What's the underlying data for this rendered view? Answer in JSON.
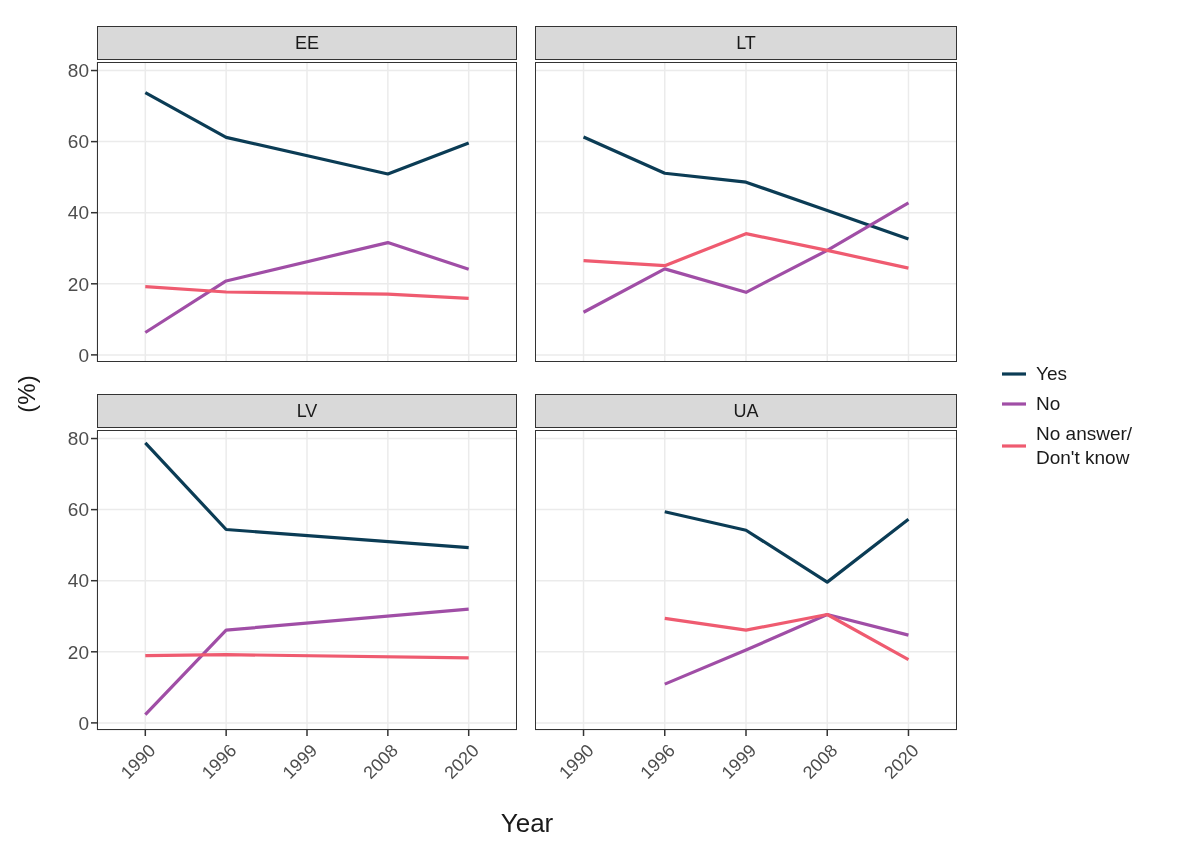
{
  "chart_data": [
    {
      "type": "line",
      "title": "EE",
      "ylabel": "(%)",
      "categories": [
        "1990",
        "1996",
        "1999",
        "2008",
        "2020"
      ],
      "ylim": [
        -2,
        82.4
      ],
      "yticks": [
        0,
        20,
        40,
        60,
        80
      ],
      "grid": true,
      "tick_labels": "y",
      "legend": "right",
      "series": [
        {
          "name": "Yes",
          "color": "#0b3c55",
          "values": [
            73.8,
            61.2,
            null,
            50.9,
            59.6
          ]
        },
        {
          "name": "No",
          "color": "#a04ea6",
          "values": [
            6.3,
            20.8,
            null,
            31.6,
            24.1
          ]
        },
        {
          "name": "No answer/ Don't know",
          "color": "#ef5b70",
          "values": [
            19.2,
            17.7,
            null,
            17.1,
            15.9
          ]
        }
      ]
    },
    {
      "type": "line",
      "title": "LT",
      "categories": [
        "1990",
        "1996",
        "1999",
        "2008",
        "2020"
      ],
      "ylim": [
        -2,
        82.4
      ],
      "yticks": [
        0,
        20,
        40,
        60,
        80
      ],
      "grid": true,
      "tick_labels": false,
      "series": [
        {
          "color": "#0b3c55",
          "values": [
            61.3,
            51.1,
            48.6,
            40.6,
            32.6
          ]
        },
        {
          "color": "#a04ea6",
          "values": [
            12,
            24.2,
            17.6,
            29.4,
            42.8
          ]
        },
        {
          "color": "#ef5b70",
          "values": [
            26.5,
            25.1,
            34.1,
            29.4,
            24.4
          ]
        }
      ]
    },
    {
      "type": "line",
      "title": "LV",
      "xlabel": "Year",
      "categories": [
        "1990",
        "1996",
        "1999",
        "2008",
        "2020"
      ],
      "ylim": [
        -2,
        82.4
      ],
      "yticks": [
        0,
        20,
        40,
        60,
        80
      ],
      "grid": true,
      "series": [
        {
          "color": "#0b3c55",
          "values": [
            78.8,
            54.4,
            null,
            null,
            49.3
          ]
        },
        {
          "color": "#a04ea6",
          "values": [
            2.3,
            26.1,
            null,
            null,
            32
          ]
        },
        {
          "color": "#ef5b70",
          "values": [
            18.9,
            19.2,
            null,
            null,
            18.3
          ]
        }
      ]
    },
    {
      "type": "line",
      "title": "UA",
      "categories": [
        "1990",
        "1996",
        "1999",
        "2008",
        "2020"
      ],
      "ylim": [
        -2,
        82.4
      ],
      "yticks": [
        0,
        20,
        40,
        60,
        80
      ],
      "grid": true,
      "tick_labels": "x",
      "series": [
        {
          "color": "#0b3c55",
          "values": [
            null,
            59.4,
            54.2,
            39.6,
            57.3
          ]
        },
        {
          "color": "#a04ea6",
          "values": [
            null,
            10.9,
            20.5,
            30.5,
            24.7
          ]
        },
        {
          "color": "#ef5b70",
          "values": [
            null,
            29.4,
            26.1,
            30.5,
            17.8
          ]
        }
      ]
    }
  ]
}
